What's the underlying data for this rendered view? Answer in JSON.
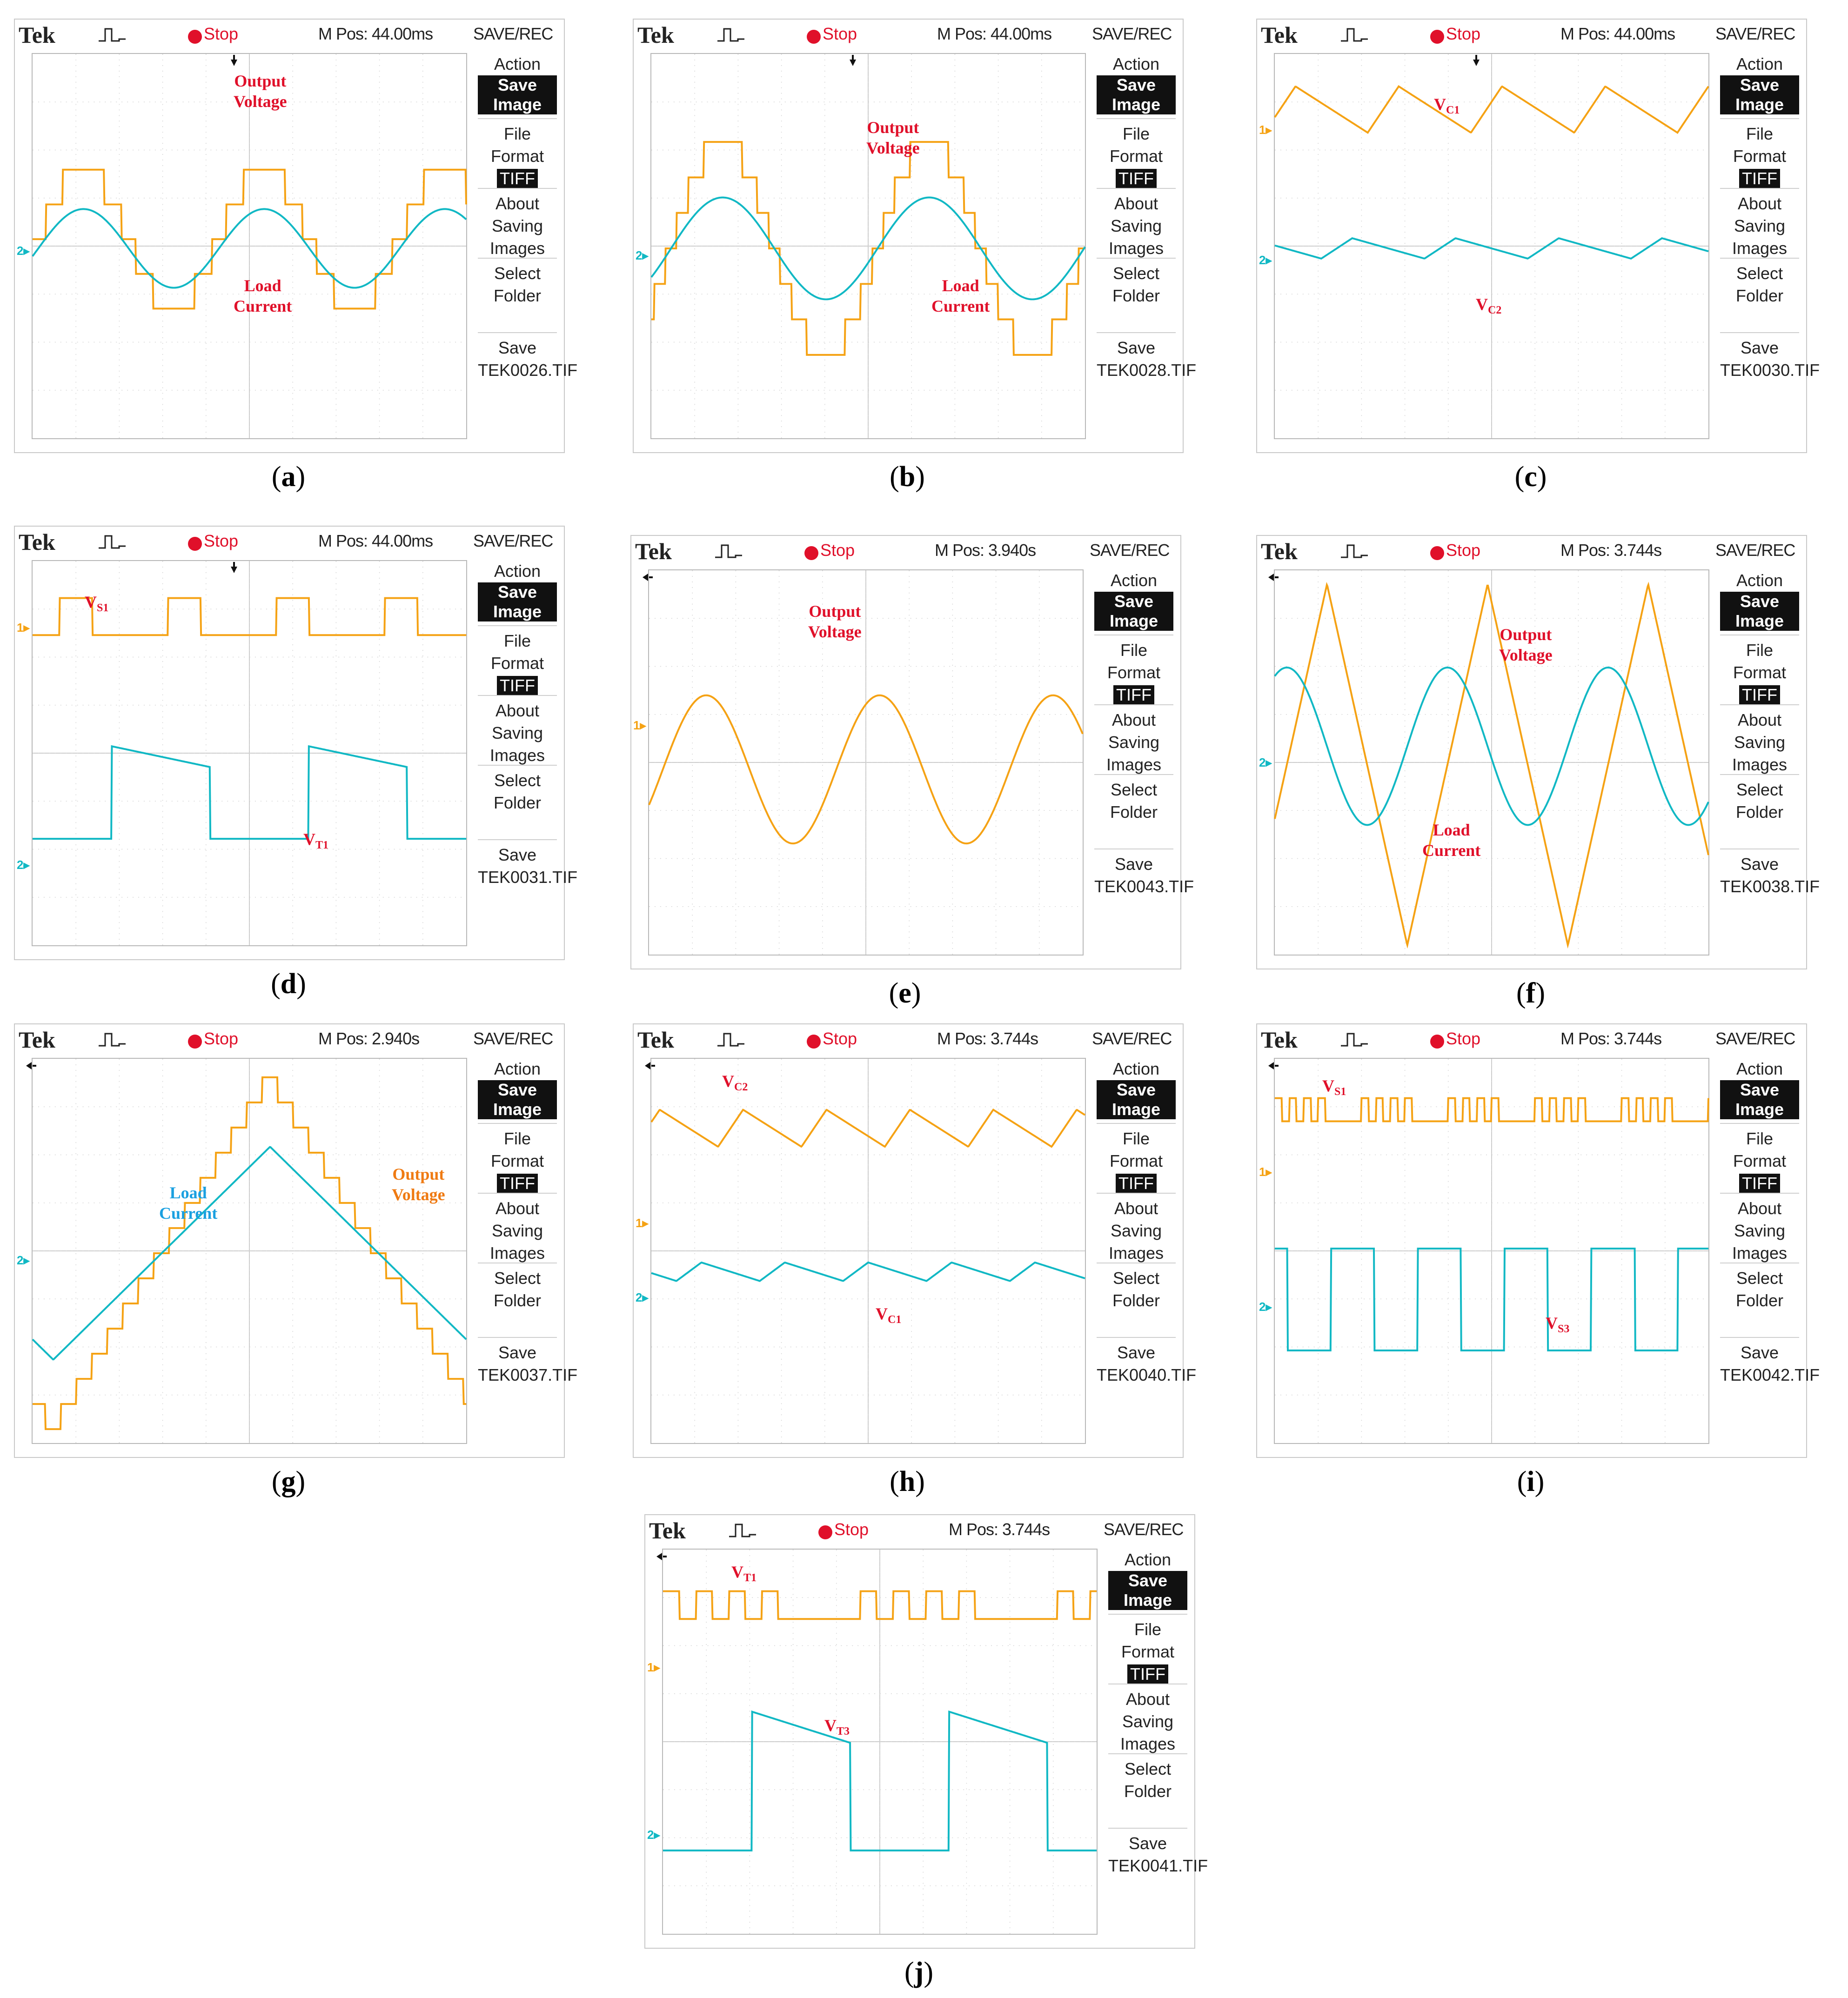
{
  "colors": {
    "ch1": "#f5a214",
    "ch2": "#11b8c4",
    "annotation_red": "#e0102a",
    "annotation_orange": "#ef7a12",
    "annotation_blue": "#1aa0e0"
  },
  "common_menu": {
    "title": "SAVE/REC",
    "action": "Action",
    "save_image": "Save Image",
    "file": "File",
    "format": "Format",
    "tiff": "TIFF",
    "about": "About",
    "saving": "Saving",
    "images": "Images",
    "select": "Select",
    "folder": "Folder",
    "save": "Save",
    "brand": "Tek",
    "stop": "Stop"
  },
  "chart_data": [
    {
      "id": "a",
      "caption": "a",
      "type": "line",
      "mpos": "M Pos: 44.00ms",
      "file": "TEK0026.TIF",
      "series": [
        {
          "name": "Output Voltage",
          "channel": 1,
          "shape": "staircase-sine"
        },
        {
          "name": "Load Current",
          "channel": 2,
          "shape": "sine"
        }
      ],
      "annotations": [
        "Output Voltage",
        "Load Current"
      ]
    },
    {
      "id": "b",
      "caption": "b",
      "type": "line",
      "mpos": "M Pos: 44.00ms",
      "file": "TEK0028.TIF",
      "series": [
        {
          "name": "Output Voltage",
          "channel": 1,
          "shape": "staircase-sine"
        },
        {
          "name": "Load Current",
          "channel": 2,
          "shape": "sine"
        }
      ],
      "annotations": [
        "Output Voltage",
        "Load Current"
      ]
    },
    {
      "id": "c",
      "caption": "c",
      "type": "line",
      "mpos": "M Pos: 44.00ms",
      "file": "TEK0030.TIF",
      "series": [
        {
          "name": "VC1",
          "channel": 1,
          "shape": "capacitor-ripple"
        },
        {
          "name": "VC2",
          "channel": 2,
          "shape": "capacitor-ripple"
        }
      ],
      "annotations": [
        "VC1",
        "VC2"
      ]
    },
    {
      "id": "d",
      "caption": "d",
      "type": "line",
      "mpos": "M Pos: 44.00ms",
      "file": "TEK0031.TIF",
      "series": [
        {
          "name": "VS1",
          "channel": 1,
          "shape": "pulse"
        },
        {
          "name": "VT1",
          "channel": 2,
          "shape": "square-droop"
        }
      ],
      "annotations": [
        "VS1",
        "VT1"
      ]
    },
    {
      "id": "e",
      "caption": "e",
      "type": "line",
      "mpos": "M Pos: 3.940s",
      "file": "TEK0043.TIF",
      "series": [
        {
          "name": "Output Voltage",
          "channel": 1,
          "shape": "sine"
        }
      ],
      "annotations": [
        "Output Voltage"
      ]
    },
    {
      "id": "f",
      "caption": "f",
      "type": "line",
      "mpos": "M Pos: 3.744s",
      "file": "TEK0038.TIF",
      "series": [
        {
          "name": "Output Voltage",
          "channel": 1,
          "shape": "triangle"
        },
        {
          "name": "Load Current",
          "channel": 2,
          "shape": "sine"
        }
      ],
      "annotations": [
        "Output Voltage",
        "Load Current"
      ]
    },
    {
      "id": "g",
      "caption": "g",
      "type": "line",
      "mpos": "M Pos: 2.940s",
      "file": "TEK0037.TIF",
      "series": [
        {
          "name": "Output Voltage",
          "channel": 1,
          "shape": "staircase-triangle"
        },
        {
          "name": "Load Current",
          "channel": 2,
          "shape": "triangle"
        }
      ],
      "annotations": [
        "Output Voltage",
        "Load Current"
      ]
    },
    {
      "id": "h",
      "caption": "h",
      "type": "line",
      "mpos": "M Pos: 3.744s",
      "file": "TEK0040.TIF",
      "series": [
        {
          "name": "VC2",
          "channel": 1,
          "shape": "capacitor-ripple"
        },
        {
          "name": "VC1",
          "channel": 2,
          "shape": "capacitor-ripple"
        }
      ],
      "annotations": [
        "VC2",
        "VC1"
      ]
    },
    {
      "id": "i",
      "caption": "i",
      "type": "line",
      "mpos": "M Pos: 3.744s",
      "file": "TEK0042.TIF",
      "series": [
        {
          "name": "VS1",
          "channel": 1,
          "shape": "pwm-burst"
        },
        {
          "name": "VS3",
          "channel": 2,
          "shape": "square"
        }
      ],
      "annotations": [
        "VS1",
        "VS3"
      ]
    },
    {
      "id": "j",
      "caption": "j",
      "type": "line",
      "mpos": "M Pos: 3.744s",
      "file": "TEK0041.TIF",
      "series": [
        {
          "name": "VT1",
          "channel": 1,
          "shape": "pwm-burst"
        },
        {
          "name": "VT3",
          "channel": 2,
          "shape": "square-droop"
        }
      ],
      "annotations": [
        "VT1",
        "VT3"
      ]
    }
  ]
}
